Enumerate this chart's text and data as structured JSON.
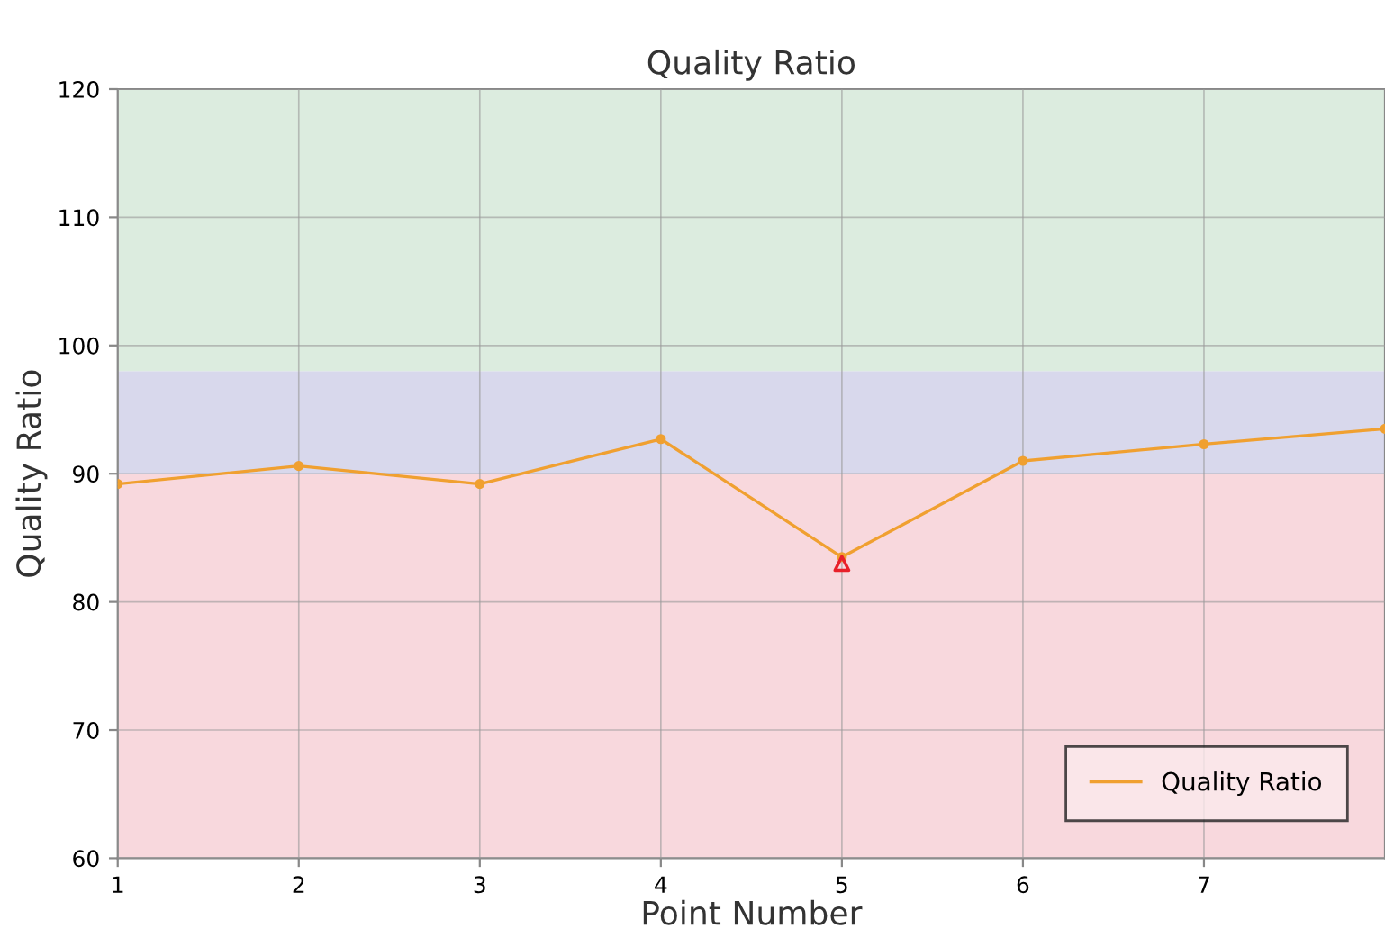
{
  "chart_data": {
    "type": "line",
    "title": "Quality Ratio",
    "xlabel": "Point Number",
    "ylabel": "Quality Ratio",
    "x": [
      1,
      2,
      3,
      4,
      5,
      6,
      7,
      8
    ],
    "series": [
      {
        "name": "Quality Ratio",
        "color": "#f0a030",
        "values": [
          89.2,
          90.6,
          89.2,
          92.7,
          83.5,
          91.0,
          92.3,
          93.5
        ],
        "marker": "circle"
      },
      {
        "type": "scatter",
        "color": "#e8202a",
        "x": [
          5
        ],
        "values": [
          83.0
        ],
        "marker": "triangle"
      }
    ],
    "bands": [
      {
        "axis": "y",
        "from": 60,
        "to": 90,
        "color": "#f8d8dd"
      },
      {
        "axis": "y",
        "from": 90,
        "to": 98,
        "color": "#d8d8ec"
      },
      {
        "axis": "y",
        "from": 98,
        "to": 120,
        "color": "#dcecdf"
      }
    ],
    "xlim": [
      1,
      8
    ],
    "xticks": [
      1,
      2,
      3,
      4,
      5,
      6,
      7
    ],
    "ylim": [
      60,
      120
    ],
    "yticks": [
      60,
      70,
      80,
      90,
      100,
      110,
      120
    ],
    "grid": true,
    "legend": "bottom right",
    "line_style": "solid"
  }
}
